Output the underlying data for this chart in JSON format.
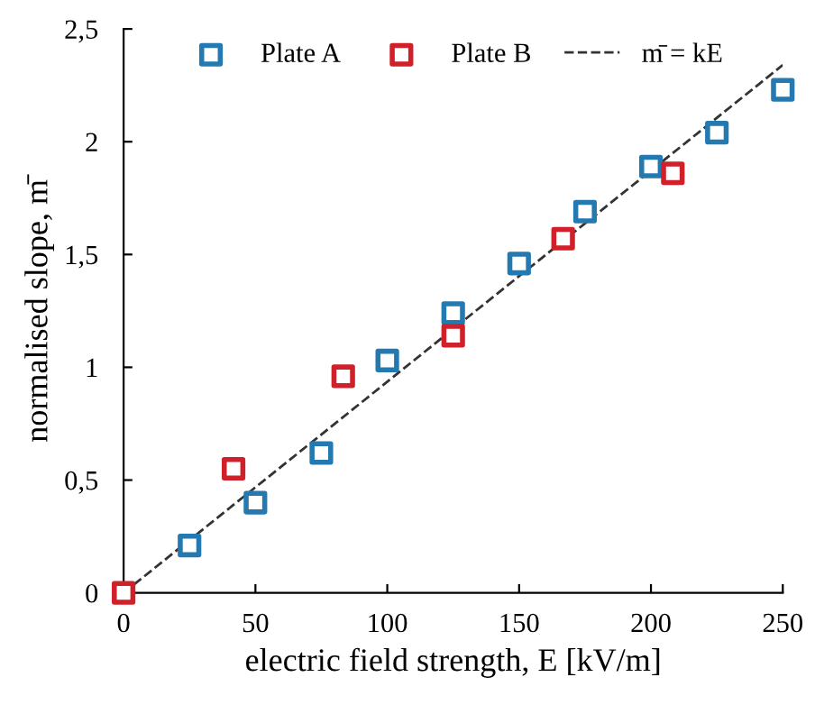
{
  "chart_data": {
    "type": "scatter",
    "xlabel": "electric field strength, E [kV/m]",
    "ylabel": "normalised slope, m̄",
    "marker": "square",
    "legend": "top",
    "grid": false,
    "xlim": [
      0,
      250
    ],
    "xticks": [
      0,
      50,
      100,
      150,
      200,
      250
    ],
    "ylim": [
      0,
      2.5
    ],
    "yticks": [
      0,
      {
        "value": 0.5,
        "label": "0,5"
      },
      1,
      {
        "value": 1.5,
        "label": "1,5"
      },
      2,
      {
        "value": 2.5,
        "label": "2,5"
      }
    ],
    "series": [
      {
        "name": "Plate A",
        "color": "#2479b0",
        "x": [
          25,
          50,
          75,
          100,
          125,
          150,
          175,
          200,
          225,
          250
        ],
        "values": [
          0.21,
          0.4,
          0.62,
          1.03,
          1.24,
          1.46,
          1.69,
          1.89,
          2.04,
          2.23
        ]
      },
      {
        "name": "Plate B",
        "color": "#d0202a",
        "x": [
          0,
          41.7,
          83.3,
          125,
          166.7,
          208.3
        ],
        "values": [
          0,
          0.55,
          0.96,
          1.14,
          1.57,
          1.86
        ]
      },
      {
        "name": "m̄ = kE",
        "type": "line",
        "line_style": "dashed",
        "marker": "none",
        "color": "#333333",
        "x": [
          0,
          250
        ],
        "values": [
          0,
          2.34
        ]
      }
    ]
  }
}
